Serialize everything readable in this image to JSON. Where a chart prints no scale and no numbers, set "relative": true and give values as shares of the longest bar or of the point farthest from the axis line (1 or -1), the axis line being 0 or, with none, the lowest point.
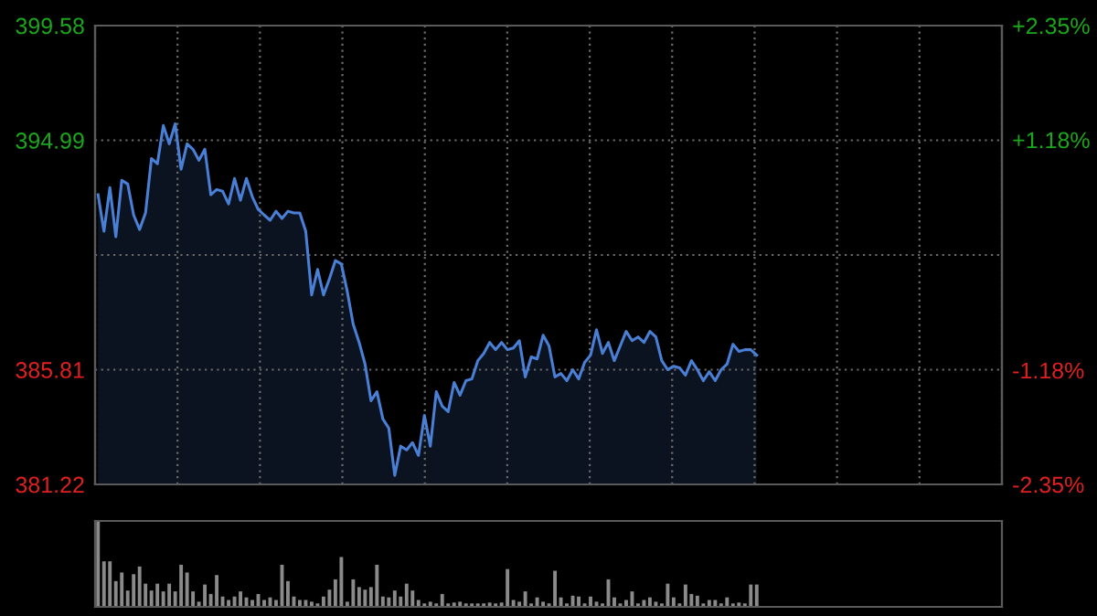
{
  "chart_data": [
    {
      "type": "area",
      "categories": [
        null,
        null,
        null,
        null,
        null,
        null,
        null,
        null,
        null,
        null,
        null,
        null,
        null,
        null,
        null,
        null,
        null,
        null,
        null,
        null,
        null,
        null,
        null,
        null,
        null,
        null,
        null,
        null,
        null,
        null,
        null,
        null,
        null,
        null,
        null,
        null,
        null,
        null,
        null,
        null,
        null,
        null,
        null,
        null,
        null,
        null,
        null,
        null,
        null,
        null,
        null,
        null,
        null,
        null,
        null,
        null,
        null,
        null,
        null,
        null,
        null,
        null,
        null,
        null,
        null,
        null,
        null,
        null,
        null,
        null,
        null,
        null,
        null,
        null,
        null,
        null,
        null,
        null,
        null,
        null,
        null,
        null,
        null,
        null,
        null,
        null,
        null,
        null,
        null,
        null,
        null,
        null,
        null,
        null,
        null,
        null,
        null,
        null,
        null,
        null,
        null,
        null,
        null,
        null,
        null,
        null,
        null,
        null,
        null,
        null,
        null,
        null
      ],
      "ylim": [
        381.22,
        399.58
      ],
      "yticks": [
        381.22,
        385.81,
        {
          "value": 390.4,
          "label": null
        },
        394.99,
        399.58
      ],
      "y2lim": [
        -2.35,
        2.35
      ],
      "y2ticks": [
        {
          "value": -2.35,
          "label": "-2.35%"
        },
        {
          "value": -1.18,
          "label": "-1.18%"
        },
        {
          "value": 1.18,
          "label": "+1.18%"
        },
        {
          "value": 2.35,
          "label": "+2.35%"
        }
      ],
      "grid": true,
      "tick_labels": "y",
      "series": [
        {
          "color": "#4a7fd6",
          "values": [
            392.81,
            391.35,
            393.1,
            391.13,
            393.39,
            393.24,
            392.0,
            391.42,
            392.08,
            394.26,
            394.05,
            395.58,
            394.85,
            395.65,
            393.83,
            394.85,
            394.63,
            394.19,
            394.63,
            392.81,
            393.02,
            392.95,
            392.44,
            393.46,
            392.59,
            393.46,
            392.73,
            392.22,
            392.0,
            391.79,
            392.15,
            391.86,
            392.15,
            392.08,
            392.08,
            391.35,
            388.8,
            389.82,
            388.8,
            389.45,
            390.18,
            390.04,
            388.94,
            387.63,
            386.9,
            386.03,
            384.57,
            384.93,
            383.84,
            383.47,
            381.58,
            382.75,
            382.6,
            382.89,
            382.38,
            383.98,
            382.75,
            384.93,
            384.35,
            384.13,
            385.3,
            384.79,
            385.37,
            385.44,
            386.17,
            386.46,
            386.9,
            386.61,
            386.9,
            386.61,
            386.68,
            386.97,
            385.52,
            386.32,
            386.24,
            387.19,
            386.76,
            385.52,
            385.66,
            385.37,
            385.81,
            385.44,
            386.1,
            386.39,
            387.41,
            386.46,
            386.9,
            386.17,
            386.76,
            387.34,
            386.97,
            387.12,
            386.9,
            387.34,
            387.12,
            386.17,
            385.81,
            385.95,
            385.88,
            385.59,
            386.17,
            385.81,
            385.37,
            385.73,
            385.37,
            385.81,
            386.03,
            386.83,
            386.54,
            386.61,
            386.61,
            386.39
          ]
        }
      ]
    },
    {
      "type": "bar",
      "relative": true,
      "tick_labels": false,
      "categories": [
        null,
        null,
        null,
        null,
        null,
        null,
        null,
        null,
        null,
        null,
        null,
        null,
        null,
        null,
        null,
        null,
        null,
        null,
        null,
        null,
        null,
        null,
        null,
        null,
        null,
        null,
        null,
        null,
        null,
        null,
        null,
        null,
        null,
        null,
        null,
        null,
        null,
        null,
        null,
        null,
        null,
        null,
        null,
        null,
        null,
        null,
        null,
        null,
        null,
        null,
        null,
        null,
        null,
        null,
        null,
        null,
        null,
        null,
        null,
        null,
        null,
        null,
        null,
        null,
        null,
        null,
        null,
        null,
        null,
        null,
        null,
        null,
        null,
        null,
        null,
        null,
        null,
        null,
        null,
        null,
        null,
        null,
        null,
        null,
        null,
        null,
        null,
        null,
        null,
        null,
        null,
        null,
        null,
        null,
        null,
        null,
        null,
        null,
        null,
        null,
        null,
        null,
        null,
        null,
        null,
        null,
        null,
        null,
        null,
        null,
        null,
        null
      ],
      "series": [
        {
          "color": "#8a8a8a",
          "values": [
            1.0,
            0.53,
            0.53,
            0.3,
            0.4,
            0.19,
            0.38,
            0.47,
            0.27,
            0.19,
            0.27,
            0.18,
            0.27,
            0.18,
            0.49,
            0.4,
            0.18,
            0.06,
            0.26,
            0.15,
            0.37,
            0.12,
            0.08,
            0.12,
            0.18,
            0.11,
            0.08,
            0.15,
            0.08,
            0.11,
            0.08,
            0.49,
            0.3,
            0.12,
            0.08,
            0.08,
            0.06,
            0.04,
            0.12,
            0.2,
            0.32,
            0.58,
            0.06,
            0.32,
            0.23,
            0.2,
            0.23,
            0.49,
            0.12,
            0.11,
            0.19,
            0.12,
            0.27,
            0.19,
            0.08,
            0.04,
            0.06,
            0.04,
            0.15,
            0.04,
            0.05,
            0.06,
            0.04,
            0.04,
            0.04,
            0.04,
            0.05,
            0.04,
            0.05,
            0.44,
            0.08,
            0.06,
            0.18,
            0.04,
            0.11,
            0.06,
            0.04,
            0.42,
            0.11,
            0.04,
            0.13,
            0.12,
            0.04,
            0.12,
            0.06,
            0.04,
            0.32,
            0.11,
            0.04,
            0.08,
            0.18,
            0.04,
            0.08,
            0.11,
            0.06,
            0.04,
            0.27,
            0.11,
            0.04,
            0.26,
            0.15,
            0.13,
            0.04,
            0.08,
            0.08,
            0.04,
            0.11,
            0.04,
            0.05,
            0.04,
            0.26,
            0.26
          ]
        }
      ]
    }
  ]
}
